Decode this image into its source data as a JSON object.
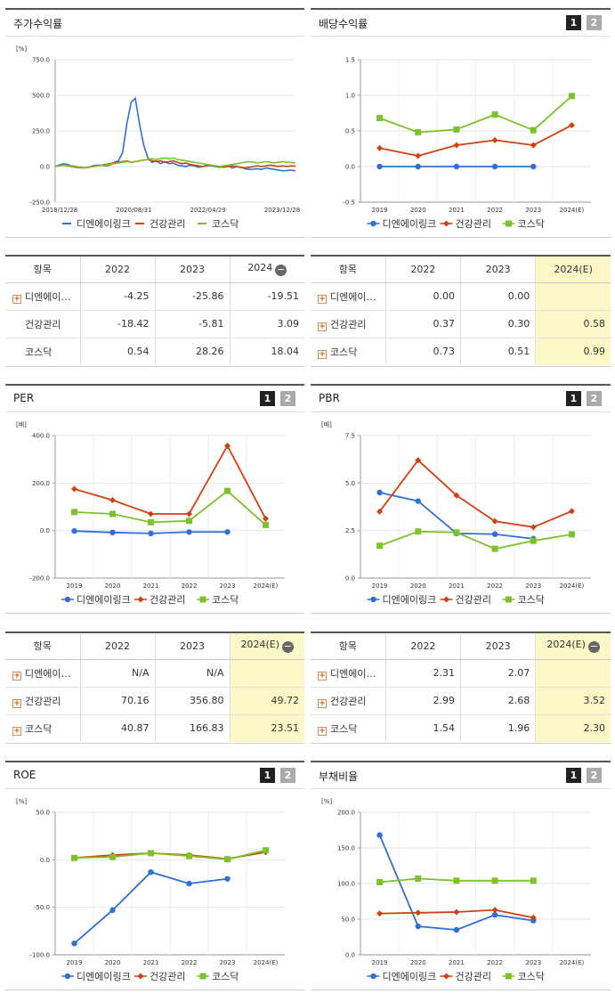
{
  "series_names": [
    "디엔에이링크",
    "건강관리",
    "코스닥"
  ],
  "colors": {
    "s0": "#2f6fd8",
    "s1": "#d0410f",
    "s2": "#7cc22a"
  },
  "pager": {
    "on": "1",
    "off": "2"
  },
  "stock": {
    "title": "주가수익률",
    "unit": "[%]",
    "chart_data": {
      "type": "line",
      "title": "주가수익률",
      "ylim": [
        -250,
        750
      ],
      "yticks": [
        "750.0",
        "500.0",
        "250.0",
        "0.0",
        "-250.0"
      ],
      "xticks": [
        "2018/12/28",
        "2020/08/31",
        "2022/04/29",
        "2023/12/28"
      ],
      "series": [
        {
          "name": "디엔에이링크",
          "values": [
            0,
            12,
            20,
            15,
            5,
            0,
            -5,
            -8,
            -3,
            5,
            10,
            8,
            5,
            10,
            30,
            40,
            100,
            300,
            450,
            480,
            300,
            150,
            60,
            30,
            40,
            20,
            35,
            20,
            25,
            10,
            5,
            0,
            10,
            5,
            -5,
            0,
            10,
            5,
            0,
            -5,
            0,
            5,
            -10,
            0,
            -5,
            -15,
            -20,
            -18,
            -15,
            -20,
            -10,
            -15,
            -20,
            -25,
            -30,
            -28,
            -25,
            -30
          ]
        },
        {
          "name": "건강관리",
          "values": [
            0,
            5,
            10,
            5,
            0,
            -5,
            -8,
            -10,
            -5,
            0,
            5,
            10,
            15,
            20,
            25,
            30,
            35,
            40,
            30,
            35,
            40,
            45,
            50,
            40,
            35,
            40,
            30,
            35,
            40,
            30,
            20,
            25,
            15,
            10,
            5,
            0,
            5,
            10,
            5,
            0,
            -5,
            0,
            5,
            0,
            -5,
            -10,
            -5,
            0,
            5,
            0,
            5,
            10,
            5,
            0,
            5,
            0,
            5,
            3
          ]
        },
        {
          "name": "코스닥",
          "values": [
            0,
            5,
            10,
            8,
            5,
            0,
            -5,
            -8,
            -3,
            0,
            5,
            8,
            10,
            15,
            20,
            25,
            30,
            35,
            30,
            35,
            40,
            45,
            50,
            55,
            50,
            55,
            60,
            55,
            60,
            50,
            45,
            40,
            35,
            30,
            25,
            20,
            15,
            10,
            5,
            0,
            5,
            10,
            15,
            20,
            25,
            30,
            35,
            30,
            25,
            30,
            35,
            30,
            25,
            30,
            35,
            30,
            28,
            25
          ]
        }
      ]
    }
  },
  "dividend": {
    "title": "배당수익률",
    "chart_data": {
      "type": "line",
      "title": "배당수익률",
      "ylim": [
        -0.5,
        1.5
      ],
      "yticks": [
        "1.5",
        "1.0",
        "0.5",
        "0.0",
        "-0.5"
      ],
      "categories": [
        "2019",
        "2020",
        "2021",
        "2022",
        "2023",
        "2024(E)"
      ],
      "series": [
        {
          "name": "디엔에이링크",
          "values": [
            0.0,
            0.0,
            0.0,
            0.0,
            0.0,
            null
          ]
        },
        {
          "name": "건강관리",
          "values": [
            0.26,
            0.15,
            0.3,
            0.37,
            0.3,
            0.58
          ]
        },
        {
          "name": "코스닥",
          "values": [
            0.68,
            0.48,
            0.52,
            0.73,
            0.51,
            0.99
          ]
        }
      ]
    }
  },
  "per": {
    "title": "PER",
    "unit": "[배]",
    "chart_data": {
      "type": "line",
      "title": "PER",
      "ylim": [
        -200,
        400
      ],
      "yticks": [
        "400.0",
        "200.0",
        "0.0",
        "-200.0"
      ],
      "categories": [
        "2019",
        "2020",
        "2021",
        "2022",
        "2023",
        "2024(E)"
      ],
      "series": [
        {
          "name": "디엔에이링크",
          "values": [
            -2,
            -8,
            -12,
            -6,
            -6,
            null
          ]
        },
        {
          "name": "건강관리",
          "values": [
            175,
            128,
            70,
            70,
            356.8,
            49.72
          ]
        },
        {
          "name": "코스닥",
          "values": [
            78,
            70,
            35,
            40.87,
            166.83,
            23.51
          ]
        }
      ]
    }
  },
  "pbr": {
    "title": "PBR",
    "unit": "[배]",
    "chart_data": {
      "type": "line",
      "title": "PBR",
      "ylim": [
        0,
        7.5
      ],
      "yticks": [
        "7.5",
        "5.0",
        "2.5",
        "0.0"
      ],
      "categories": [
        "2019",
        "2020",
        "2021",
        "2022",
        "2023",
        "2024(E)"
      ],
      "series": [
        {
          "name": "디엔에이링크",
          "values": [
            4.5,
            4.05,
            2.35,
            2.31,
            2.07,
            null
          ]
        },
        {
          "name": "건강관리",
          "values": [
            3.5,
            6.2,
            4.35,
            2.99,
            2.68,
            3.52
          ]
        },
        {
          "name": "코스닥",
          "values": [
            1.7,
            2.45,
            2.4,
            1.54,
            1.96,
            2.3
          ]
        }
      ]
    }
  },
  "roe": {
    "title": "ROE",
    "unit": "[%]",
    "chart_data": {
      "type": "line",
      "title": "ROE",
      "ylim": [
        -100,
        50
      ],
      "yticks": [
        "50.0",
        "0.0",
        "-50.0",
        "-100.0"
      ],
      "categories": [
        "2019",
        "2020",
        "2021",
        "2022",
        "2023",
        "2024(E)"
      ],
      "series": [
        {
          "name": "디엔에이링크",
          "values": [
            -88,
            -53,
            -13,
            -25,
            -20,
            null
          ]
        },
        {
          "name": "건강관리",
          "values": [
            2,
            5,
            7,
            5,
            1,
            8
          ]
        },
        {
          "name": "코스닥",
          "values": [
            2,
            3,
            7,
            4,
            0.5,
            10
          ]
        }
      ]
    }
  },
  "debt": {
    "title": "부채비율",
    "unit": "[%]",
    "chart_data": {
      "type": "line",
      "title": "부채비율",
      "ylim": [
        0,
        200
      ],
      "yticks": [
        "200.0",
        "150.0",
        "100.0",
        "50.0",
        "0.0"
      ],
      "categories": [
        "2019",
        "2020",
        "2021",
        "2022",
        "2023",
        "2024(E)"
      ],
      "series": [
        {
          "name": "디엔에이링크",
          "values": [
            168,
            40,
            35,
            56,
            48,
            null
          ]
        },
        {
          "name": "건강관리",
          "values": [
            58,
            59,
            60,
            63,
            52,
            null
          ]
        },
        {
          "name": "코스닥",
          "values": [
            102,
            107,
            104,
            104,
            104,
            null
          ]
        }
      ]
    }
  },
  "tables": {
    "stock": {
      "header": "항목",
      "cols": [
        "2022",
        "2023",
        "2024"
      ],
      "rows": [
        {
          "label": "디엔에이…",
          "plus": true,
          "cells": [
            "-4.25",
            "-25.86",
            "-19.51"
          ]
        },
        {
          "label": "건강관리",
          "plus": false,
          "cells": [
            "-18.42",
            "-5.81",
            "3.09"
          ]
        },
        {
          "label": "코스닥",
          "plus": false,
          "cells": [
            "0.54",
            "28.26",
            "18.04"
          ]
        }
      ]
    },
    "dividend": {
      "header": "항목",
      "cols": [
        "2022",
        "2023",
        "2024(E)"
      ],
      "rows": [
        {
          "label": "디엔에이…",
          "plus": true,
          "cells": [
            "0.00",
            "0.00",
            ""
          ]
        },
        {
          "label": "건강관리",
          "plus": true,
          "cells": [
            "0.37",
            "0.30",
            "0.58"
          ]
        },
        {
          "label": "코스닥",
          "plus": true,
          "cells": [
            "0.73",
            "0.51",
            "0.99"
          ]
        }
      ]
    },
    "per": {
      "header": "항목",
      "cols": [
        "2022",
        "2023",
        "2024(E)"
      ],
      "rows": [
        {
          "label": "디엔에이…",
          "plus": true,
          "cells": [
            "N/A",
            "N/A",
            ""
          ]
        },
        {
          "label": "건강관리",
          "plus": true,
          "cells": [
            "70.16",
            "356.80",
            "49.72"
          ]
        },
        {
          "label": "코스닥",
          "plus": true,
          "cells": [
            "40.87",
            "166.83",
            "23.51"
          ]
        }
      ]
    },
    "pbr": {
      "header": "항목",
      "cols": [
        "2022",
        "2023",
        "2024(E)"
      ],
      "rows": [
        {
          "label": "디엔에이…",
          "plus": true,
          "cells": [
            "2.31",
            "2.07",
            ""
          ]
        },
        {
          "label": "건강관리",
          "plus": true,
          "cells": [
            "2.99",
            "2.68",
            "3.52"
          ]
        },
        {
          "label": "코스닥",
          "plus": true,
          "cells": [
            "1.54",
            "1.96",
            "2.30"
          ]
        }
      ]
    }
  }
}
